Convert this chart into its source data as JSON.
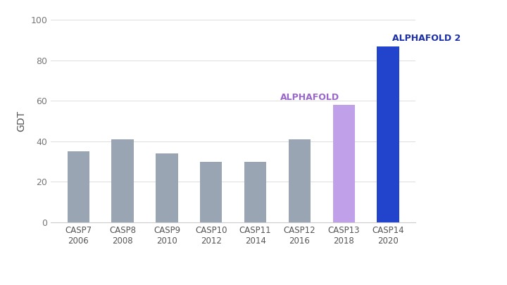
{
  "categories": [
    "CASP7\n2006",
    "CASP8\n2008",
    "CASP9\n2010",
    "CASP10\n2012",
    "CASP11\n2014",
    "CASP12\n2016",
    "CASP13\n2018",
    "CASP14\n2020"
  ],
  "values": [
    35,
    41,
    34,
    30,
    30,
    41,
    58,
    87
  ],
  "bar_colors": [
    "#9aa5b4",
    "#9aa5b4",
    "#9aa5b4",
    "#9aa5b4",
    "#9aa5b4",
    "#9aa5b4",
    "#c0a0e8",
    "#2244cc"
  ],
  "annotations": [
    {
      "index": 6,
      "text": "ALPHAFOLD",
      "color": "#9966cc",
      "fontsize": 9,
      "fontweight": "bold",
      "ha": "right"
    },
    {
      "index": 7,
      "text": "ALPHAFOLD 2",
      "color": "#1a2eaa",
      "fontsize": 9,
      "fontweight": "bold",
      "ha": "left"
    }
  ],
  "ylabel": "GDT",
  "ylim": [
    0,
    100
  ],
  "yticks": [
    0,
    20,
    40,
    60,
    80,
    100
  ],
  "background_color": "#ffffff",
  "grid_color": "#dddddd",
  "bar_width": 0.5
}
